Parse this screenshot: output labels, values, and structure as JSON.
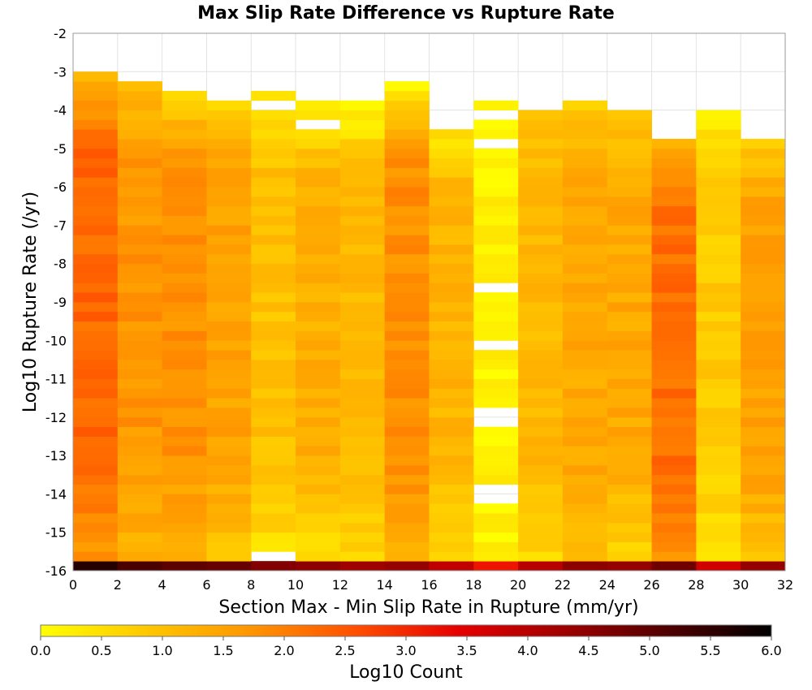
{
  "chart_data": {
    "type": "heatmap",
    "title": "Max Slip Rate Difference vs Rupture Rate",
    "xlabel": "Section Max - Min Slip Rate in Rupture (mm/yr)",
    "ylabel": "Log10 Rupture Rate (/yr)",
    "xlim": [
      0,
      32
    ],
    "ylim": [
      -16,
      -2
    ],
    "x_ticks": [
      "0",
      "2",
      "4",
      "6",
      "8",
      "10",
      "12",
      "14",
      "16",
      "18",
      "20",
      "22",
      "24",
      "26",
      "28",
      "30",
      "32"
    ],
    "y_ticks": [
      "-2",
      "-3",
      "-4",
      "-5",
      "-6",
      "-7",
      "-8",
      "-9",
      "-10",
      "-11",
      "-12",
      "-13",
      "-14",
      "-15",
      "-16"
    ],
    "grid": true,
    "x_bin_width": 2,
    "y_bin_height": 0.25,
    "x_bins_left_edges": [
      0,
      2,
      4,
      6,
      8,
      10,
      12,
      14,
      16,
      18,
      20,
      22,
      24,
      26,
      28,
      30
    ],
    "columns": [
      {
        "x_range": [
          0,
          2
        ],
        "top_log10_rate": -3.0,
        "top_value": 1.2,
        "mid_value": 2.3,
        "bottom_value": 1.6,
        "bottom_row_value": 5.6
      },
      {
        "x_range": [
          2,
          4
        ],
        "top_log10_rate": -3.25,
        "top_value": 1.0,
        "mid_value": 1.7,
        "bottom_value": 1.1,
        "bottom_row_value": 5.2
      },
      {
        "x_range": [
          4,
          6
        ],
        "top_log10_rate": -3.5,
        "top_value": 0.7,
        "mid_value": 1.8,
        "bottom_value": 1.0,
        "bottom_row_value": 5.0
      },
      {
        "x_range": [
          6,
          8
        ],
        "top_log10_rate": -3.5,
        "top_value": 0.6,
        "mid_value": 1.5,
        "bottom_value": 0.8,
        "bottom_row_value": 4.9
      },
      {
        "x_range": [
          8,
          10
        ],
        "top_log10_rate": -3.5,
        "top_value": 0.3,
        "mid_value": 1.0,
        "bottom_value": 0.4,
        "bottom_row_value": 4.6
      },
      {
        "x_range": [
          10,
          12
        ],
        "top_log10_rate": -3.75,
        "top_value": 0.2,
        "mid_value": 1.3,
        "bottom_value": 0.4,
        "bottom_row_value": 4.5
      },
      {
        "x_range": [
          12,
          14
        ],
        "top_log10_rate": -3.75,
        "top_value": 0.2,
        "mid_value": 1.1,
        "bottom_value": 0.5,
        "bottom_row_value": 4.3
      },
      {
        "x_range": [
          14,
          16
        ],
        "top_log10_rate": -3.25,
        "top_value": 0.3,
        "mid_value": 1.8,
        "bottom_value": 1.2,
        "bottom_row_value": 4.4
      },
      {
        "x_range": [
          16,
          18
        ],
        "top_log10_rate": -4.25,
        "top_value": 0.3,
        "mid_value": 1.2,
        "bottom_value": 0.5,
        "bottom_row_value": 3.9
      },
      {
        "x_range": [
          18,
          20
        ],
        "top_log10_rate": -3.75,
        "top_value": 0.2,
        "mid_value": 0.2,
        "bottom_value": 0.2,
        "bottom_row_value": 3.2
      },
      {
        "x_range": [
          20,
          22
        ],
        "top_log10_rate": -4.0,
        "top_value": 1.0,
        "mid_value": 1.1,
        "bottom_value": 0.5,
        "bottom_row_value": 4.0
      },
      {
        "x_range": [
          22,
          24
        ],
        "top_log10_rate": -3.75,
        "top_value": 0.8,
        "mid_value": 1.4,
        "bottom_value": 0.9,
        "bottom_row_value": 4.5
      },
      {
        "x_range": [
          24,
          26
        ],
        "top_log10_rate": -4.0,
        "top_value": 0.8,
        "mid_value": 1.4,
        "bottom_value": 0.5,
        "bottom_row_value": 4.4
      },
      {
        "x_range": [
          26,
          28
        ],
        "top_log10_rate": -4.75,
        "top_value": 1.3,
        "mid_value": 2.2,
        "bottom_value": 1.6,
        "bottom_row_value": 4.8
      },
      {
        "x_range": [
          28,
          30
        ],
        "top_log10_rate": -3.75,
        "top_value": 0.3,
        "mid_value": 0.8,
        "bottom_value": 0.5,
        "bottom_row_value": 3.7
      },
      {
        "x_range": [
          30,
          32
        ],
        "top_log10_rate": -4.75,
        "top_value": 0.8,
        "mid_value": 1.5,
        "bottom_value": 0.8,
        "bottom_row_value": 4.4
      }
    ],
    "colorbar": {
      "label": "Log10 Count",
      "range": [
        0.0,
        6.0
      ],
      "ticks": [
        "0.0",
        "0.5",
        "1.0",
        "1.5",
        "2.0",
        "2.5",
        "3.0",
        "3.5",
        "4.0",
        "4.5",
        "5.0",
        "5.5",
        "6.0"
      ],
      "colors": [
        "#ffff00",
        "#ffc800",
        "#ff9600",
        "#ff5000",
        "#e60000",
        "#a00000",
        "#500000",
        "#000000"
      ]
    }
  }
}
